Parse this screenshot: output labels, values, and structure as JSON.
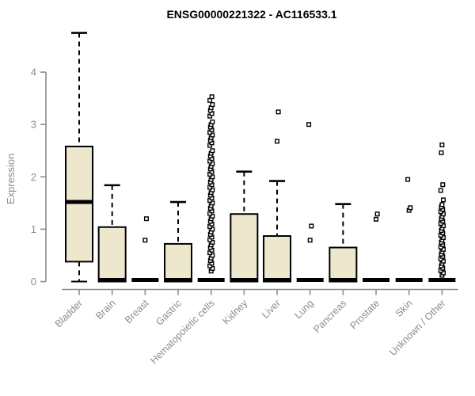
{
  "title": "ENSG00000221322 - AC116533.1",
  "colors": {
    "box_fill": "#ede7cd",
    "box_border": "#000000",
    "median": "#000000",
    "axis": "#8c8c8c",
    "tick_label": "#8c8c8c",
    "title": "#000000",
    "outlier_fill": "#ffffff"
  },
  "chart_data": {
    "type": "boxplot",
    "title": "ENSG00000221322 - AC116533.1",
    "xlabel": "",
    "ylabel": "Expression",
    "ylim": [
      0,
      4.85
    ],
    "yticks": [
      0,
      1,
      2,
      3,
      4
    ],
    "grid": false,
    "legend": "none",
    "categories": [
      "Bladder",
      "Brain",
      "Breast",
      "Gastric",
      "Hematopoietic cells",
      "Kidney",
      "Liver",
      "Lung",
      "Pancreas",
      "Prostate",
      "Skin",
      "Unknown / Other"
    ],
    "series": [
      {
        "name": "Bladder",
        "whisker_low": 0,
        "q1": 0.38,
        "median": 1.52,
        "q3": 2.58,
        "whisker_high": 4.75,
        "outliers": []
      },
      {
        "name": "Brain",
        "whisker_low": 0,
        "q1": 0,
        "median": 0.02,
        "q3": 1.04,
        "whisker_high": 1.84,
        "outliers": []
      },
      {
        "name": "Breast",
        "whisker_low": 0,
        "q1": 0,
        "median": 0,
        "q3": 0,
        "whisker_high": 0,
        "outliers": [
          0.79,
          1.2
        ]
      },
      {
        "name": "Gastric",
        "whisker_low": 0,
        "q1": 0,
        "median": 0.01,
        "q3": 0.72,
        "whisker_high": 1.52,
        "outliers": []
      },
      {
        "name": "Hematopoietic cells",
        "whisker_low": 0,
        "q1": 0,
        "median": 0,
        "q3": 0,
        "whisker_high": 0,
        "outliers": [
          0.2,
          0.25,
          0.3,
          0.35,
          0.4,
          0.45,
          0.5,
          0.55,
          0.6,
          0.65,
          0.7,
          0.75,
          0.8,
          0.85,
          0.9,
          0.95,
          1.0,
          1.05,
          1.1,
          1.15,
          1.2,
          1.25,
          1.3,
          1.35,
          1.4,
          1.45,
          1.5,
          1.55,
          1.6,
          1.65,
          1.7,
          1.75,
          1.8,
          1.85,
          1.9,
          1.95,
          2.0,
          2.05,
          2.1,
          2.15,
          2.2,
          2.25,
          2.3,
          2.35,
          2.4,
          2.45,
          2.5,
          2.6,
          2.65,
          2.7,
          2.75,
          2.8,
          2.85,
          2.9,
          2.95,
          3.0,
          3.05,
          3.16,
          3.21,
          3.27,
          3.32,
          3.38,
          3.46,
          3.53
        ]
      },
      {
        "name": "Kidney",
        "whisker_low": 0,
        "q1": 0,
        "median": 0.01,
        "q3": 1.29,
        "whisker_high": 2.1,
        "outliers": []
      },
      {
        "name": "Liver",
        "whisker_low": 0,
        "q1": 0,
        "median": 0.01,
        "q3": 0.87,
        "whisker_high": 1.92,
        "outliers": [
          2.68,
          3.24
        ]
      },
      {
        "name": "Lung",
        "whisker_low": 0,
        "q1": 0,
        "median": 0,
        "q3": 0,
        "whisker_high": 0,
        "outliers": [
          0.79,
          1.06,
          3.0
        ]
      },
      {
        "name": "Pancreas",
        "whisker_low": 0,
        "q1": 0,
        "median": 0.01,
        "q3": 0.65,
        "whisker_high": 1.48,
        "outliers": []
      },
      {
        "name": "Prostate",
        "whisker_low": 0,
        "q1": 0,
        "median": 0,
        "q3": 0,
        "whisker_high": 0,
        "outliers": [
          1.19,
          1.29
        ]
      },
      {
        "name": "Skin",
        "whisker_low": 0,
        "q1": 0,
        "median": 0,
        "q3": 0,
        "whisker_high": 0,
        "outliers": [
          1.36,
          1.41,
          1.95
        ]
      },
      {
        "name": "Unknown / Other",
        "whisker_low": 0,
        "q1": 0,
        "median": 0,
        "q3": 0,
        "whisker_high": 0,
        "outliers": [
          0.12,
          0.165,
          0.21,
          0.255,
          0.3,
          0.345,
          0.39,
          0.435,
          0.48,
          0.525,
          0.57,
          0.615,
          0.66,
          0.705,
          0.75,
          0.795,
          0.84,
          0.885,
          0.93,
          0.975,
          1.02,
          1.065,
          1.11,
          1.155,
          1.2,
          1.245,
          1.29,
          1.335,
          1.38,
          1.425,
          1.47,
          1.56,
          1.74,
          1.85,
          2.46,
          2.61
        ]
      }
    ]
  }
}
